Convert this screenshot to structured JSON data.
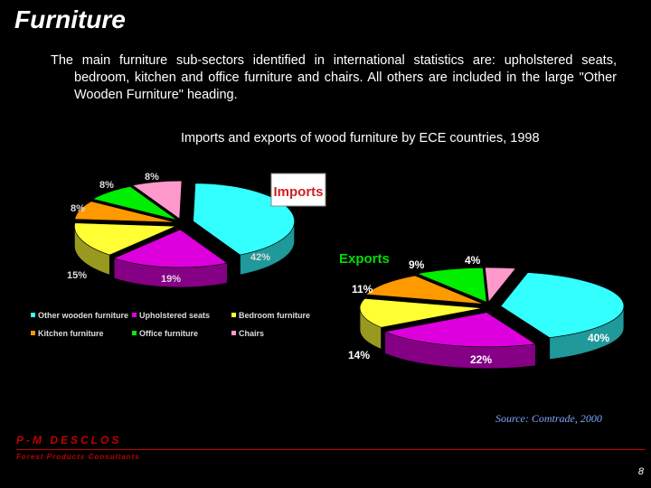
{
  "slide": {
    "title": "Furniture",
    "text": "The main furniture sub-sectors identified in international statistics are: upholstered seats, bedroom, kitchen and office furniture and chairs. All others are included in the large \"Other Wooden Furniture\" heading.",
    "source": "Source: Comtrade, 2000",
    "brand": "P-M DESCLOS",
    "brand_sub": "Forest Products Consultants",
    "page_number": "8"
  },
  "colors": {
    "Other wooden furniture": "#33ffff",
    "Upholstered seats": "#dd00dd",
    "Bedroom furniture": "#ffff33",
    "Kitchen furniture": "#ff9900",
    "Office furniture": "#00ee00",
    "Chairs": "#ff99cc"
  },
  "chart_data": [
    {
      "type": "pie",
      "title": "Imports and exports of wood furniture by ECE countries, 1998",
      "label": "Imports",
      "categories": [
        "Other wooden furniture",
        "Upholstered seats",
        "Bedroom furniture",
        "Kitchen furniture",
        "Office furniture",
        "Chairs"
      ],
      "values": [
        42,
        19,
        15,
        8,
        8,
        8
      ],
      "data_labels": [
        "42%",
        "19%",
        "15%",
        "8%",
        "8%",
        "8%"
      ],
      "legend": "bottom"
    },
    {
      "type": "pie",
      "label": "Exports",
      "categories": [
        "Other wooden furniture",
        "Upholstered seats",
        "Bedroom furniture",
        "Kitchen furniture",
        "Office furniture",
        "Chairs"
      ],
      "values": [
        40,
        22,
        14,
        11,
        9,
        4
      ],
      "data_labels": [
        "40%",
        "22%",
        "14%",
        "11%",
        "9%",
        "4%"
      ]
    }
  ]
}
